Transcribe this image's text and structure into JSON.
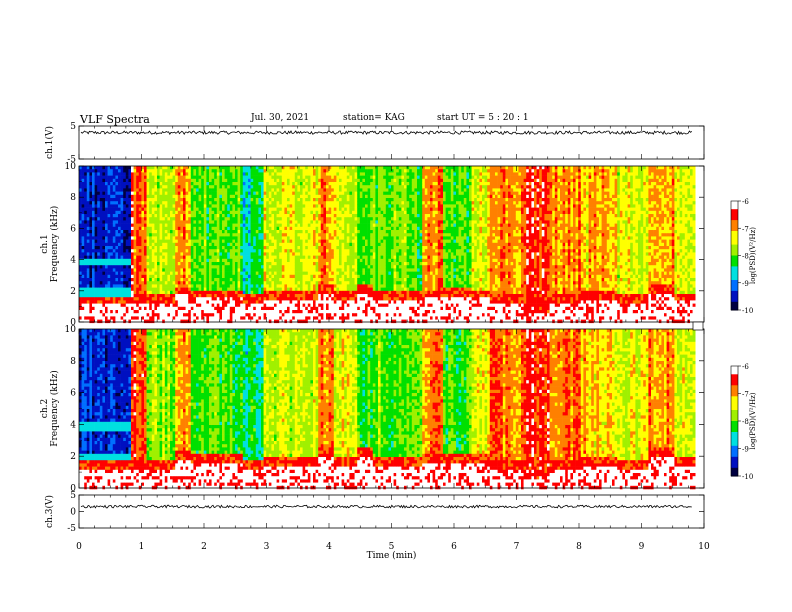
{
  "header": {
    "title": "VLF Spectra",
    "date": "Jul. 30, 2021",
    "station": "station= KAG",
    "start": "start  UT =   5 : 20 : 1"
  },
  "colors": {
    "spectro": [
      "#000040",
      "#0010c0",
      "#0070ff",
      "#00e0e0",
      "#00e000",
      "#a0f000",
      "#ffff00",
      "#ff8000",
      "#ff0000",
      "#ffffff"
    ]
  },
  "chart_data": [
    {
      "type": "line",
      "name": "ch1-waveform",
      "ylabel": "ch.1(V)",
      "ylim": [
        -5,
        5
      ],
      "yticks": [
        "5",
        "-5"
      ],
      "xlim": [
        0,
        10
      ],
      "baseline": 3.0,
      "noise": 0.5
    },
    {
      "type": "heatmap",
      "name": "ch1-spectrogram",
      "ylabel": "ch.1\nFrequency (kHz)",
      "ylabel_lines": [
        "ch.1",
        "Frequency (kHz)"
      ],
      "ylim": [
        0,
        10
      ],
      "yticks": [
        "0",
        "2",
        "4",
        "6",
        "8",
        "10"
      ],
      "xlim": [
        0,
        10
      ],
      "colorbar": {
        "label": "log(PSD)(V²/Hz)",
        "range": [
          -10,
          -6
        ],
        "ticks": [
          "-6",
          "-7",
          "-8",
          "-9",
          "-10"
        ]
      }
    },
    {
      "type": "heatmap",
      "name": "ch2-spectrogram",
      "ylabel": "ch.2\nFrequency (kHz)",
      "ylabel_lines": [
        "ch.2",
        "Frequency (kHz)"
      ],
      "ylim": [
        0,
        10
      ],
      "yticks": [
        "0",
        "2",
        "4",
        "6",
        "8",
        "10"
      ],
      "xlim": [
        0,
        10
      ],
      "colorbar": {
        "label": "log(PSD)(V²/Hz)",
        "range": [
          -10,
          -6
        ],
        "ticks": [
          "-6",
          "-7",
          "-8",
          "-9",
          "-10"
        ]
      }
    },
    {
      "type": "line",
      "name": "ch3-waveform",
      "ylabel": "ch.3(V)",
      "ylim": [
        -5,
        5
      ],
      "yticks": [
        "5",
        "0",
        "-5"
      ],
      "xlim": [
        0,
        10
      ],
      "xlabel": "Time (min)",
      "xticks": [
        "0",
        "1",
        "2",
        "3",
        "4",
        "5",
        "6",
        "7",
        "8",
        "9",
        "10"
      ],
      "baseline": 1.5,
      "noise": 0.4
    }
  ],
  "spectro_segments": [
    {
      "t": [
        0.0,
        0.8
      ],
      "hue": 1.2,
      "floor": 1.3
    },
    {
      "t": [
        0.8,
        1.05
      ],
      "hue": 7.6,
      "floor": 1.2
    },
    {
      "t": [
        1.05,
        1.5
      ],
      "hue": 5.0,
      "floor": 1.3
    },
    {
      "t": [
        1.5,
        1.75
      ],
      "hue": 6.8,
      "floor": 1.8
    },
    {
      "t": [
        1.75,
        2.6
      ],
      "hue": 4.4,
      "floor": 1.6
    },
    {
      "t": [
        2.6,
        2.95
      ],
      "hue": 3.4,
      "floor": 1.3
    },
    {
      "t": [
        2.95,
        3.8
      ],
      "hue": 5.6,
      "floor": 1.5
    },
    {
      "t": [
        3.8,
        4.05
      ],
      "hue": 6.9,
      "floor": 2.0
    },
    {
      "t": [
        4.05,
        4.45
      ],
      "hue": 5.7,
      "floor": 1.5
    },
    {
      "t": [
        4.45,
        4.7
      ],
      "hue": 4.3,
      "floor": 2.0
    },
    {
      "t": [
        4.7,
        5.45
      ],
      "hue": 4.6,
      "floor": 1.5
    },
    {
      "t": [
        5.45,
        5.8
      ],
      "hue": 6.9,
      "floor": 1.6
    },
    {
      "t": [
        5.8,
        6.25
      ],
      "hue": 4.2,
      "floor": 1.7
    },
    {
      "t": [
        6.25,
        6.55
      ],
      "hue": 5.8,
      "floor": 1.6
    },
    {
      "t": [
        6.55,
        7.1
      ],
      "hue": 7.2,
      "floor": 1.3
    },
    {
      "t": [
        7.1,
        7.5
      ],
      "hue": 7.8,
      "floor": 0.6
    },
    {
      "t": [
        7.5,
        8.0
      ],
      "hue": 7.0,
      "floor": 1.3
    },
    {
      "t": [
        8.0,
        8.6
      ],
      "hue": 6.4,
      "floor": 1.5
    },
    {
      "t": [
        8.6,
        9.1
      ],
      "hue": 5.7,
      "floor": 1.3
    },
    {
      "t": [
        9.1,
        9.5
      ],
      "hue": 6.8,
      "floor": 2.0
    },
    {
      "t": [
        9.5,
        9.85
      ],
      "hue": 5.4,
      "floor": 1.4
    }
  ]
}
